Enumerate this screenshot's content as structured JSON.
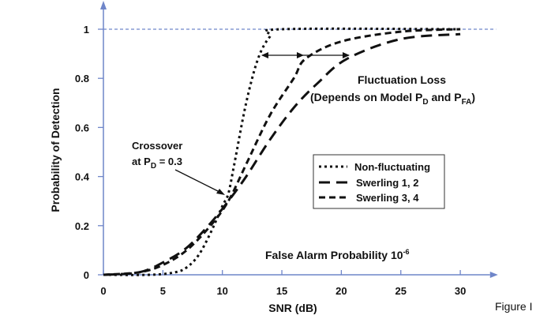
{
  "chart_data": {
    "type": "line",
    "title": "",
    "xlabel": "SNR (dB)",
    "ylabel": "Probability of Detection",
    "xlim": [
      0,
      32
    ],
    "ylim": [
      0,
      1.1
    ],
    "xticks": [
      "0",
      "5",
      "10",
      "15",
      "20",
      "25",
      "30"
    ],
    "yticks": [
      "0",
      "0.2",
      "0.4",
      "0.6",
      "0.8",
      "1"
    ],
    "reference_line": {
      "y": 1,
      "style": "dotted"
    },
    "series": [
      {
        "name": "Non-fluctuating",
        "style": "dotted",
        "x": [
          0,
          4,
          6,
          7,
          8,
          9,
          10,
          10.5,
          11,
          12,
          13,
          14,
          15,
          30
        ],
        "y": [
          0,
          0,
          0.01,
          0.03,
          0.08,
          0.17,
          0.28,
          0.33,
          0.45,
          0.7,
          0.88,
          0.97,
          1,
          1
        ]
      },
      {
        "name": "Swerling 1, 2",
        "style": "long-dash",
        "x": [
          0,
          3,
          5,
          7,
          9,
          10.5,
          12,
          14,
          16,
          18,
          20.5,
          25,
          30
        ],
        "y": [
          0,
          0.01,
          0.05,
          0.11,
          0.21,
          0.3,
          0.4,
          0.55,
          0.68,
          0.78,
          0.88,
          0.96,
          0.98
        ]
      },
      {
        "name": "Swerling 3, 4",
        "style": "short-dash",
        "x": [
          0,
          3,
          5,
          7,
          9,
          10.5,
          12,
          14,
          16,
          17,
          20,
          25,
          30
        ],
        "y": [
          0,
          0.01,
          0.04,
          0.1,
          0.2,
          0.3,
          0.45,
          0.65,
          0.8,
          0.88,
          0.95,
          0.99,
          1
        ]
      }
    ],
    "legend_placement": "center-right",
    "annotations": {
      "crossover_line1": "Crossover",
      "crossover_line2_prefix": "at P",
      "crossover_sub": "D",
      "crossover_suffix": " = 0.3",
      "loss_title": "Fluctuation Loss",
      "loss_line2_prefix": "(Depends on Model P",
      "loss_sub1": "D",
      "loss_mid": " and P",
      "loss_sub2": "FA",
      "loss_end": ")",
      "pfa_text": "False Alarm Probability 10",
      "pfa_exp": "-6"
    },
    "axis_color": "#6f86c9"
  },
  "caption": "Figure I"
}
